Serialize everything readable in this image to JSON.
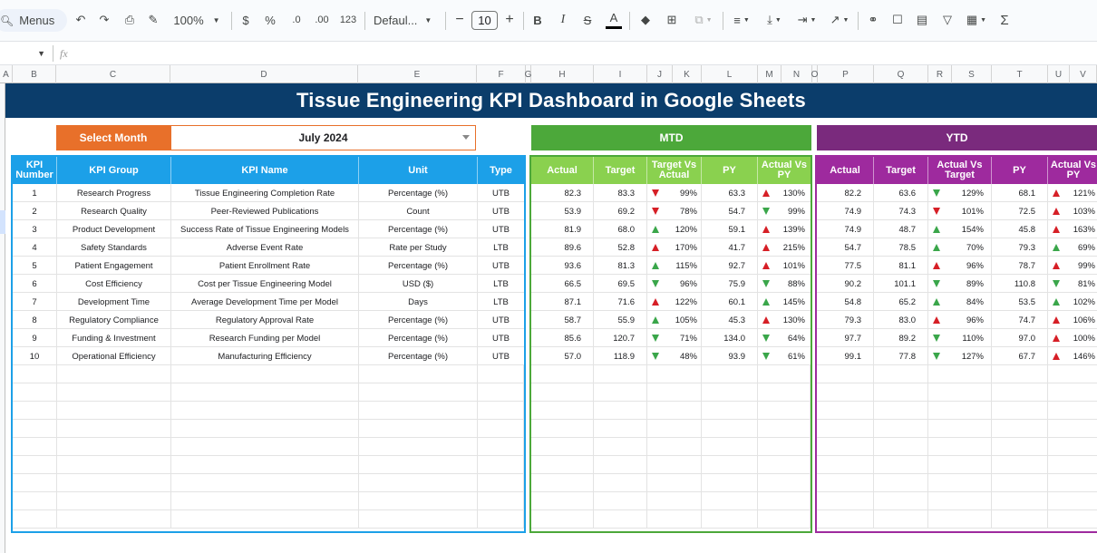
{
  "toolbar": {
    "menus_label": "Menus",
    "zoom": "100%",
    "currency": "$",
    "percent": "%",
    "dec_decrease": ".0",
    "dec_increase": ".00",
    "number_format": "123",
    "font": "Defaul...",
    "font_size": "10",
    "minus": "−",
    "plus": "+",
    "bold": "B",
    "italic": "I",
    "strike": "S",
    "text_color": "A",
    "sum": "Σ"
  },
  "formula_bar": {
    "cell_ref": "",
    "fx": "fx"
  },
  "columns": [
    "A",
    "B",
    "C",
    "D",
    "E",
    "F",
    "G",
    "H",
    "I",
    "J",
    "K",
    "L",
    "M",
    "N",
    "O",
    "P",
    "Q",
    "R",
    "S",
    "T",
    "U",
    "V"
  ],
  "dashboard": {
    "title": "Tissue Engineering KPI Dashboard in Google Sheets",
    "select_month_label": "Select Month",
    "selected_month": "July 2024",
    "mtd_label": "MTD",
    "ytd_label": "YTD",
    "main_headers": [
      "KPI Number",
      "KPI Group",
      "KPI Name",
      "Unit",
      "Type"
    ],
    "mtd_headers": [
      "Actual",
      "Target",
      "Target Vs Actual",
      "PY",
      "Actual Vs PY"
    ],
    "ytd_headers": [
      "Actual",
      "Target",
      "Actual Vs Target",
      "PY",
      "Actual Vs PY"
    ],
    "rows": [
      {
        "num": "1",
        "group": "Research Progress",
        "name": "Tissue Engineering Completion Rate",
        "unit": "Percentage (%)",
        "type": "UTB",
        "m_act": "82.3",
        "m_tgt": "83.3",
        "m_tva_dir": "down",
        "m_tva": "99%",
        "m_py": "63.3",
        "m_avp_dir": "up",
        "m_avp": "130%",
        "y_act": "82.2",
        "y_tgt": "63.6",
        "y_avt_dir": "down",
        "y_avt": "129%",
        "y_py": "68.1",
        "y_avp_dir": "up",
        "y_avp": "121%"
      },
      {
        "num": "2",
        "group": "Research Quality",
        "name": "Peer-Reviewed Publications",
        "unit": "Count",
        "type": "UTB",
        "m_act": "53.9",
        "m_tgt": "69.2",
        "m_tva_dir": "down",
        "m_tva": "78%",
        "m_py": "54.7",
        "m_avp_dir": "down",
        "m_avp": "99%",
        "y_act": "74.9",
        "y_tgt": "74.3",
        "y_avt_dir": "down",
        "y_avt": "101%",
        "y_py": "72.5",
        "y_avp_dir": "up",
        "y_avp": "103%"
      },
      {
        "num": "3",
        "group": "Product Development",
        "name": "Success Rate of Tissue Engineering Models",
        "unit": "Percentage (%)",
        "type": "UTB",
        "m_act": "81.9",
        "m_tgt": "68.0",
        "m_tva_dir": "up",
        "m_tva": "120%",
        "m_py": "59.1",
        "m_avp_dir": "up",
        "m_avp": "139%",
        "y_act": "74.9",
        "y_tgt": "48.7",
        "y_avt_dir": "up",
        "y_avt": "154%",
        "y_py": "45.8",
        "y_avp_dir": "up",
        "y_avp": "163%"
      },
      {
        "num": "4",
        "group": "Safety Standards",
        "name": "Adverse Event Rate",
        "unit": "Rate per Study",
        "type": "LTB",
        "m_act": "89.6",
        "m_tgt": "52.8",
        "m_tva_dir": "up",
        "m_tva": "170%",
        "m_py": "41.7",
        "m_avp_dir": "up",
        "m_avp": "215%",
        "y_act": "54.7",
        "y_tgt": "78.5",
        "y_avt_dir": "up",
        "y_avt": "70%",
        "y_py": "79.3",
        "y_avp_dir": "up",
        "y_avp": "69%"
      },
      {
        "num": "5",
        "group": "Patient Engagement",
        "name": "Patient Enrollment Rate",
        "unit": "Percentage (%)",
        "type": "UTB",
        "m_act": "93.6",
        "m_tgt": "81.3",
        "m_tva_dir": "up",
        "m_tva": "115%",
        "m_py": "92.7",
        "m_avp_dir": "up",
        "m_avp": "101%",
        "y_act": "77.5",
        "y_tgt": "81.1",
        "y_avt_dir": "up",
        "y_avt": "96%",
        "y_py": "78.7",
        "y_avp_dir": "up",
        "y_avp": "99%"
      },
      {
        "num": "6",
        "group": "Cost Efficiency",
        "name": "Cost per Tissue Engineering Model",
        "unit": "USD ($)",
        "type": "LTB",
        "m_act": "66.5",
        "m_tgt": "69.5",
        "m_tva_dir": "down",
        "m_tva": "96%",
        "m_py": "75.9",
        "m_avp_dir": "down",
        "m_avp": "88%",
        "y_act": "90.2",
        "y_tgt": "101.1",
        "y_avt_dir": "down",
        "y_avt": "89%",
        "y_py": "110.8",
        "y_avp_dir": "down",
        "y_avp": "81%"
      },
      {
        "num": "7",
        "group": "Development Time",
        "name": "Average Development Time per Model",
        "unit": "Days",
        "type": "LTB",
        "m_act": "87.1",
        "m_tgt": "71.6",
        "m_tva_dir": "up",
        "m_tva": "122%",
        "m_py": "60.1",
        "m_avp_dir": "up",
        "m_avp": "145%",
        "y_act": "54.8",
        "y_tgt": "65.2",
        "y_avt_dir": "up",
        "y_avt": "84%",
        "y_py": "53.5",
        "y_avp_dir": "up",
        "y_avp": "102%"
      },
      {
        "num": "8",
        "group": "Regulatory Compliance",
        "name": "Regulatory Approval Rate",
        "unit": "Percentage (%)",
        "type": "UTB",
        "m_act": "58.7",
        "m_tgt": "55.9",
        "m_tva_dir": "up",
        "m_tva": "105%",
        "m_py": "45.3",
        "m_avp_dir": "up",
        "m_avp": "130%",
        "y_act": "79.3",
        "y_tgt": "83.0",
        "y_avt_dir": "up",
        "y_avt": "96%",
        "y_py": "74.7",
        "y_avp_dir": "up",
        "y_avp": "106%"
      },
      {
        "num": "9",
        "group": "Funding & Investment",
        "name": "Research Funding per Model",
        "unit": "Percentage (%)",
        "type": "UTB",
        "m_act": "85.6",
        "m_tgt": "120.7",
        "m_tva_dir": "down",
        "m_tva": "71%",
        "m_py": "134.0",
        "m_avp_dir": "down",
        "m_avp": "64%",
        "y_act": "97.7",
        "y_tgt": "89.2",
        "y_avt_dir": "down",
        "y_avt": "110%",
        "y_py": "97.0",
        "y_avp_dir": "up",
        "y_avp": "100%"
      },
      {
        "num": "10",
        "group": "Operational Efficiency",
        "name": "Manufacturing Efficiency",
        "unit": "Percentage (%)",
        "type": "UTB",
        "m_act": "57.0",
        "m_tgt": "118.9",
        "m_tva_dir": "down",
        "m_tva": "48%",
        "m_py": "93.9",
        "m_avp_dir": "down",
        "m_avp": "61%",
        "y_act": "99.1",
        "y_tgt": "77.8",
        "y_avt_dir": "down",
        "y_avt": "127%",
        "y_py": "67.7",
        "y_avp_dir": "up",
        "y_avp": "146%"
      }
    ]
  },
  "colors": {
    "title_band": "#0b3d6b",
    "select_month": "#e8702a",
    "main_header": "#1ca0e8",
    "mtd_banner": "#4ca83a",
    "mtd_header": "#8ad14f",
    "ytd_banner": "#7a2a7d",
    "ytd_header": "#9e2a9e",
    "arrow_up": "#3aa64a",
    "arrow_down": "#d61f26"
  }
}
